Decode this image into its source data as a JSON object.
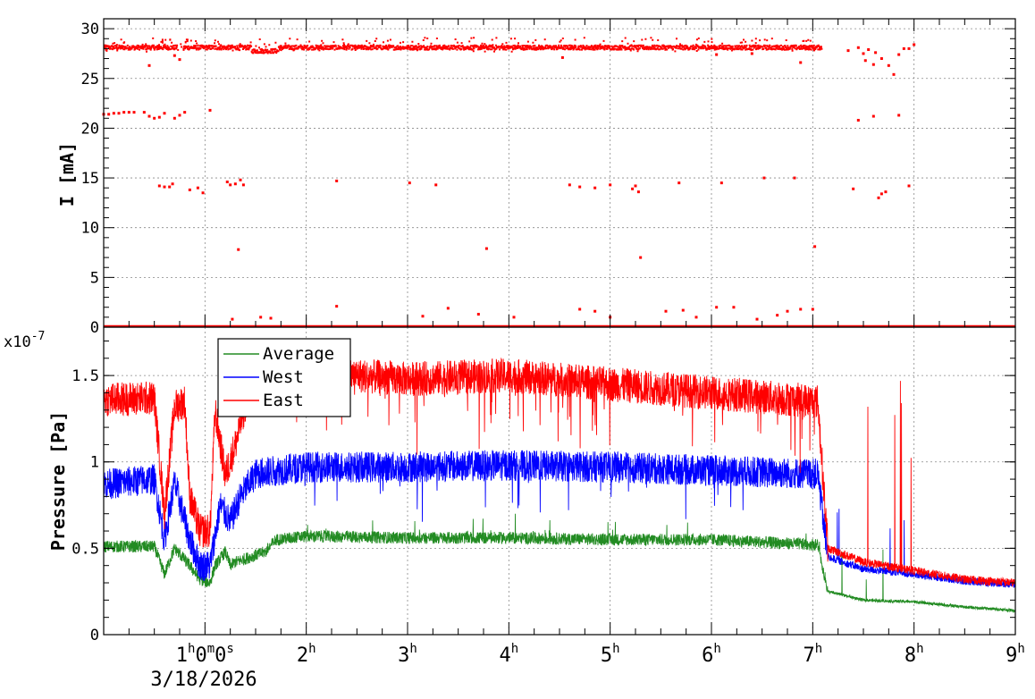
{
  "chart_data": [
    {
      "type": "scatter",
      "title": "",
      "xlabel": "",
      "ylabel": "I [mA]",
      "xlim_hours": [
        0,
        9
      ],
      "ylim": [
        0,
        31
      ],
      "yticks": [
        0,
        5,
        10,
        15,
        20,
        25,
        30
      ],
      "grid": true,
      "series": [
        {
          "color": "#ff0000",
          "main_band_value": 28.2,
          "points": [
            [
              0.0,
              21.4
            ],
            [
              0.05,
              21.4
            ],
            [
              0.1,
              21.5
            ],
            [
              0.15,
              21.5
            ],
            [
              0.2,
              21.6
            ],
            [
              0.25,
              21.6
            ],
            [
              0.3,
              21.6
            ],
            [
              0.4,
              21.6
            ],
            [
              0.45,
              21.2
            ],
            [
              0.5,
              21.0
            ],
            [
              0.55,
              21.1
            ],
            [
              0.6,
              21.5
            ],
            [
              0.7,
              21.0
            ],
            [
              0.75,
              21.3
            ],
            [
              0.8,
              21.6
            ],
            [
              1.05,
              21.8
            ],
            [
              7.45,
              20.8
            ],
            [
              7.6,
              21.2
            ],
            [
              7.85,
              21.3
            ],
            [
              0.55,
              14.2
            ],
            [
              0.6,
              14.1
            ],
            [
              0.65,
              14.1
            ],
            [
              0.68,
              14.4
            ],
            [
              0.85,
              13.8
            ],
            [
              0.93,
              14.0
            ],
            [
              0.98,
              13.5
            ],
            [
              1.22,
              14.6
            ],
            [
              1.25,
              14.3
            ],
            [
              1.3,
              14.4
            ],
            [
              1.35,
              14.8
            ],
            [
              1.38,
              14.3
            ],
            [
              2.3,
              14.7
            ],
            [
              3.02,
              14.5
            ],
            [
              3.28,
              14.3
            ],
            [
              4.6,
              14.3
            ],
            [
              4.7,
              14.1
            ],
            [
              4.85,
              14.0
            ],
            [
              5.0,
              14.3
            ],
            [
              5.22,
              13.9
            ],
            [
              5.25,
              14.2
            ],
            [
              5.28,
              13.6
            ],
            [
              5.68,
              14.5
            ],
            [
              6.1,
              14.5
            ],
            [
              6.52,
              15.0
            ],
            [
              6.82,
              15.0
            ],
            [
              7.4,
              13.9
            ],
            [
              7.65,
              13.0
            ],
            [
              7.68,
              13.4
            ],
            [
              7.72,
              13.6
            ],
            [
              7.95,
              14.2
            ],
            [
              1.33,
              7.8
            ],
            [
              3.78,
              7.9
            ],
            [
              5.3,
              7.0
            ],
            [
              7.02,
              8.1
            ],
            [
              2.3,
              2.1
            ],
            [
              3.4,
              1.9
            ],
            [
              4.7,
              1.8
            ],
            [
              4.85,
              1.6
            ],
            [
              5.0,
              1.0
            ],
            [
              5.55,
              1.6
            ],
            [
              5.72,
              1.7
            ],
            [
              5.85,
              1.0
            ],
            [
              6.05,
              2.0
            ],
            [
              6.22,
              2.0
            ],
            [
              6.75,
              1.6
            ],
            [
              6.88,
              1.8
            ],
            [
              7.0,
              1.8
            ],
            [
              1.27,
              0.8
            ],
            [
              1.55,
              1.0
            ],
            [
              1.65,
              0.9
            ],
            [
              3.15,
              1.1
            ],
            [
              3.7,
              1.3
            ],
            [
              4.05,
              1.0
            ],
            [
              6.45,
              0.8
            ],
            [
              6.65,
              1.2
            ],
            [
              7.35,
              27.8
            ],
            [
              7.45,
              28.1
            ],
            [
              7.5,
              27.5
            ],
            [
              7.52,
              26.8
            ],
            [
              7.55,
              27.9
            ],
            [
              7.6,
              26.4
            ],
            [
              7.62,
              27.6
            ],
            [
              7.68,
              27.0
            ],
            [
              7.75,
              26.3
            ],
            [
              7.8,
              25.4
            ],
            [
              7.85,
              27.4
            ],
            [
              7.9,
              28.0
            ],
            [
              7.95,
              28.0
            ],
            [
              8.0,
              28.4
            ],
            [
              0.45,
              26.3
            ],
            [
              0.7,
              27.3
            ],
            [
              0.75,
              26.9
            ],
            [
              4.53,
              27.1
            ],
            [
              6.88,
              26.6
            ],
            [
              6.4,
              27.5
            ],
            [
              6.05,
              27.4
            ]
          ]
        }
      ]
    },
    {
      "type": "line",
      "title": "",
      "xlabel": "",
      "ylabel": "Pressure [Pa]",
      "y_scale_label": "x10",
      "y_scale_exponent": "-7",
      "xlim_hours": [
        0,
        9
      ],
      "ylim": [
        0,
        1.78
      ],
      "yticks": [
        0,
        0.5,
        1,
        1.5
      ],
      "ytick_labels": [
        "0",
        "0.5",
        "1",
        "1.5"
      ],
      "grid": true,
      "legend_placement": "top-left",
      "x_date_label": "3/18/2026",
      "x_ticks": [
        {
          "hours": 1,
          "text": "1",
          "parts": [
            [
              "h",
              "0"
            ],
            [
              "m",
              "0"
            ],
            [
              "s",
              ""
            ]
          ]
        },
        {
          "hours": 2,
          "text": "2",
          "parts": [
            [
              "h",
              ""
            ]
          ]
        },
        {
          "hours": 3,
          "text": "3",
          "parts": [
            [
              "h",
              ""
            ]
          ]
        },
        {
          "hours": 4,
          "text": "4",
          "parts": [
            [
              "h",
              ""
            ]
          ]
        },
        {
          "hours": 5,
          "text": "5",
          "parts": [
            [
              "h",
              ""
            ]
          ]
        },
        {
          "hours": 6,
          "text": "6",
          "parts": [
            [
              "h",
              ""
            ]
          ]
        },
        {
          "hours": 7,
          "text": "7",
          "parts": [
            [
              "h",
              ""
            ]
          ]
        },
        {
          "hours": 8,
          "text": "8",
          "parts": [
            [
              "h",
              ""
            ]
          ]
        },
        {
          "hours": 9,
          "text": "9",
          "parts": [
            [
              "h",
              ""
            ]
          ]
        }
      ],
      "series": [
        {
          "name": "Average",
          "color": "#228b22",
          "profile": [
            [
              0.0,
              0.51
            ],
            [
              0.5,
              0.51
            ],
            [
              0.6,
              0.35
            ],
            [
              0.7,
              0.5
            ],
            [
              0.85,
              0.4
            ],
            [
              0.95,
              0.32
            ],
            [
              1.05,
              0.3
            ],
            [
              1.1,
              0.4
            ],
            [
              1.2,
              0.48
            ],
            [
              1.25,
              0.4
            ],
            [
              1.3,
              0.42
            ],
            [
              1.45,
              0.45
            ],
            [
              1.6,
              0.48
            ],
            [
              1.7,
              0.55
            ],
            [
              2.0,
              0.57
            ],
            [
              3.0,
              0.56
            ],
            [
              4.0,
              0.56
            ],
            [
              5.0,
              0.55
            ],
            [
              6.0,
              0.55
            ],
            [
              7.05,
              0.52
            ],
            [
              7.15,
              0.25
            ],
            [
              7.5,
              0.2
            ],
            [
              8.0,
              0.19
            ],
            [
              8.5,
              0.16
            ],
            [
              9.0,
              0.14
            ]
          ]
        },
        {
          "name": "West",
          "color": "#0000ff",
          "profile": [
            [
              0.0,
              0.87
            ],
            [
              0.5,
              0.9
            ],
            [
              0.6,
              0.55
            ],
            [
              0.7,
              0.88
            ],
            [
              0.85,
              0.55
            ],
            [
              0.95,
              0.4
            ],
            [
              1.05,
              0.4
            ],
            [
              1.15,
              0.75
            ],
            [
              1.25,
              0.65
            ],
            [
              1.35,
              0.8
            ],
            [
              1.5,
              0.93
            ],
            [
              1.7,
              0.95
            ],
            [
              2.0,
              0.97
            ],
            [
              3.0,
              0.97
            ],
            [
              4.0,
              0.98
            ],
            [
              5.0,
              0.97
            ],
            [
              6.0,
              0.95
            ],
            [
              7.05,
              0.93
            ],
            [
              7.15,
              0.45
            ],
            [
              7.5,
              0.38
            ],
            [
              8.0,
              0.35
            ],
            [
              8.5,
              0.31
            ],
            [
              9.0,
              0.29
            ]
          ]
        },
        {
          "name": "East",
          "color": "#ff0000",
          "profile": [
            [
              0.0,
              1.36
            ],
            [
              0.5,
              1.37
            ],
            [
              0.6,
              0.7
            ],
            [
              0.7,
              1.32
            ],
            [
              0.8,
              1.35
            ],
            [
              0.85,
              0.8
            ],
            [
              0.95,
              0.6
            ],
            [
              1.05,
              0.6
            ],
            [
              1.1,
              1.3
            ],
            [
              1.2,
              0.92
            ],
            [
              1.3,
              1.1
            ],
            [
              1.45,
              1.45
            ],
            [
              1.6,
              1.5
            ],
            [
              2.0,
              1.52
            ],
            [
              3.0,
              1.48
            ],
            [
              4.0,
              1.5
            ],
            [
              5.0,
              1.45
            ],
            [
              6.0,
              1.4
            ],
            [
              7.05,
              1.35
            ],
            [
              7.15,
              0.5
            ],
            [
              7.5,
              0.42
            ],
            [
              8.0,
              0.37
            ],
            [
              8.5,
              0.32
            ],
            [
              9.0,
              0.3
            ]
          ]
        }
      ]
    }
  ]
}
